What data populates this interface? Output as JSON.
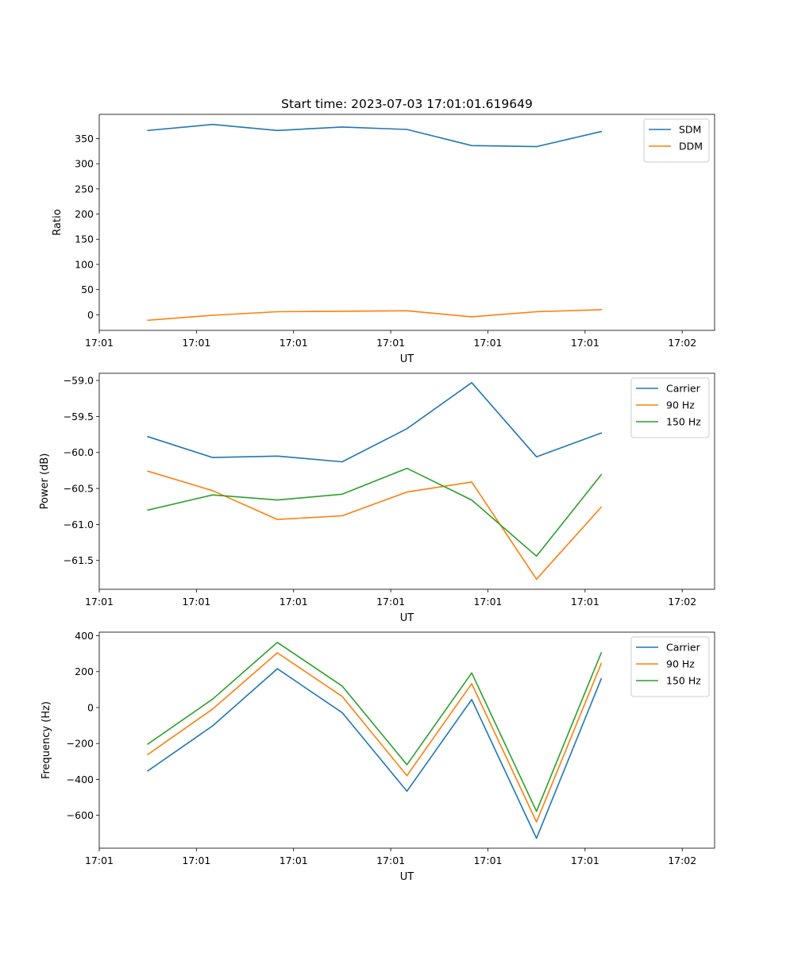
{
  "figure_title": "Start time: 2023-07-03 17:01:01.619649",
  "chart_data": [
    {
      "type": "line",
      "ylabel": "Ratio",
      "xlabel": "UT",
      "ylim": [
        -31,
        398
      ],
      "yticks": [
        0,
        50,
        100,
        150,
        200,
        250,
        300,
        350
      ],
      "ytick_labels": [
        "0",
        "50",
        "100",
        "150",
        "200",
        "250",
        "300",
        "350"
      ],
      "xlim": [
        0,
        19
      ],
      "xticks": [
        0,
        3,
        6,
        9,
        12,
        15,
        18
      ],
      "xtick_labels": [
        "17:01",
        "17:01",
        "17:01",
        "17:01",
        "17:01",
        "17:01",
        "17:02"
      ],
      "x": [
        1.5,
        3.5,
        5.5,
        7.5,
        9.5,
        11.5,
        13.5,
        15.5
      ],
      "legend_position": "top-right",
      "series": [
        {
          "name": "SDM",
          "color": "#1f77b4",
          "values": [
            366,
            378,
            366,
            373,
            368,
            336,
            334,
            364
          ]
        },
        {
          "name": "DDM",
          "color": "#ff7f0e",
          "values": [
            -11,
            -1,
            6,
            7,
            8,
            -4,
            6,
            10
          ]
        }
      ]
    },
    {
      "type": "line",
      "ylabel": "Power (dB)",
      "xlabel": "UT",
      "ylim": [
        -61.9,
        -58.9
      ],
      "yticks": [
        -61.5,
        -61.0,
        -60.5,
        -60.0,
        -59.5,
        -59.0
      ],
      "ytick_labels": [
        "−61.5",
        "−61.0",
        "−60.5",
        "−60.0",
        "−59.5",
        "−59.0"
      ],
      "xlim": [
        0,
        19
      ],
      "xticks": [
        0,
        3,
        6,
        9,
        12,
        15,
        18
      ],
      "xtick_labels": [
        "17:01",
        "17:01",
        "17:01",
        "17:01",
        "17:01",
        "17:01",
        "17:02"
      ],
      "x": [
        1.5,
        3.5,
        5.5,
        7.5,
        9.5,
        11.5,
        13.5,
        15.5
      ],
      "legend_position": "top-right",
      "series": [
        {
          "name": "Carrier",
          "color": "#1f77b4",
          "values": [
            -59.78,
            -60.07,
            -60.05,
            -60.13,
            -59.67,
            -59.03,
            -60.06,
            -59.73
          ]
        },
        {
          "name": "90 Hz",
          "color": "#ff7f0e",
          "values": [
            -60.26,
            -60.53,
            -60.93,
            -60.88,
            -60.55,
            -60.41,
            -61.76,
            -60.76
          ]
        },
        {
          "name": "150 Hz",
          "color": "#2ca02c",
          "values": [
            -60.8,
            -60.59,
            -60.66,
            -60.58,
            -60.22,
            -60.66,
            -61.44,
            -60.31
          ]
        }
      ]
    },
    {
      "type": "line",
      "ylabel": "Frequency (Hz)",
      "xlabel": "UT",
      "ylim": [
        -783,
        420
      ],
      "yticks": [
        -600,
        -400,
        -200,
        0,
        200,
        400
      ],
      "ytick_labels": [
        "−600",
        "−400",
        "−200",
        "0",
        "200",
        "400"
      ],
      "xlim": [
        0,
        19
      ],
      "xticks": [
        0,
        3,
        6,
        9,
        12,
        15,
        18
      ],
      "xtick_labels": [
        "17:01",
        "17:01",
        "17:01",
        "17:01",
        "17:01",
        "17:01",
        "17:02"
      ],
      "x": [
        1.5,
        3.5,
        5.5,
        7.5,
        9.5,
        11.5,
        13.5,
        15.5
      ],
      "legend_position": "top-right",
      "series": [
        {
          "name": "Carrier",
          "color": "#1f77b4",
          "values": [
            -352,
            -102,
            216,
            -28,
            -466,
            45,
            -728,
            160
          ]
        },
        {
          "name": "90 Hz",
          "color": "#ff7f0e",
          "values": [
            -261,
            -8,
            305,
            62,
            -379,
            133,
            -637,
            245
          ]
        },
        {
          "name": "150 Hz",
          "color": "#2ca02c",
          "values": [
            -203,
            47,
            363,
            120,
            -318,
            193,
            -578,
            305
          ]
        }
      ]
    }
  ]
}
